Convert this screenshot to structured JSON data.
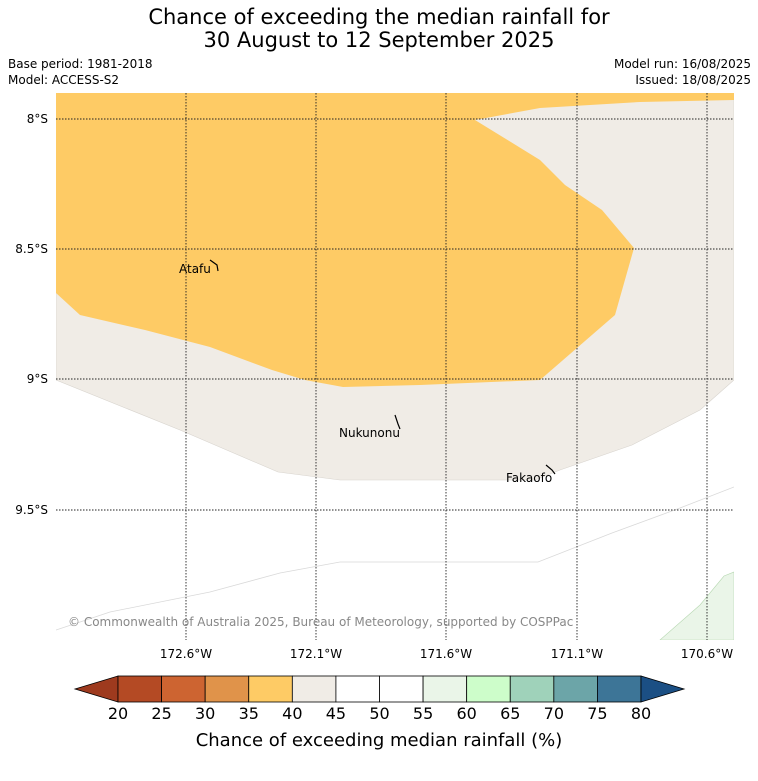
{
  "title": {
    "line1": "Chance of exceeding the median rainfall for",
    "line2": "30 August to 12 September 2025"
  },
  "meta": {
    "base_period": "Base period: 1981-2018",
    "model": "Model: ACCESS-S2",
    "model_run": "Model run: 16/08/2025",
    "issued": "Issued: 18/08/2025"
  },
  "map": {
    "lat_labels": [
      "8°S",
      "8.5°S",
      "9°S",
      "9.5°S"
    ],
    "lon_labels": [
      "172.6°W",
      "172.1°W",
      "171.6°W",
      "171.1°W",
      "170.6°W"
    ],
    "places": [
      {
        "name": "Atafu"
      },
      {
        "name": "Nukunonu"
      },
      {
        "name": "Fakaofo"
      }
    ],
    "copyright": "© Commonwealth of Australia 2025, Bureau of Meteorology, supported by COSPPac",
    "colors": {
      "band_35_40": "#fecb65",
      "band_40_45": "#f0ece6",
      "band_55_60": "#eaf5e8",
      "background": "#ffffff"
    }
  },
  "colorbar": {
    "ticks": [
      "20",
      "25",
      "30",
      "35",
      "40",
      "45",
      "50",
      "55",
      "60",
      "65",
      "70",
      "75",
      "80"
    ],
    "colors": [
      "#9e3a1e",
      "#b44a24",
      "#cd6431",
      "#e0934a",
      "#fecb65",
      "#f0ece6",
      "#ffffff",
      "#ffffff",
      "#eaf5e8",
      "#cdfdca",
      "#9fd2ba",
      "#6ca5a8",
      "#3d7597",
      "#1b4f84"
    ],
    "label": "Chance of exceeding median rainfall (%)"
  }
}
